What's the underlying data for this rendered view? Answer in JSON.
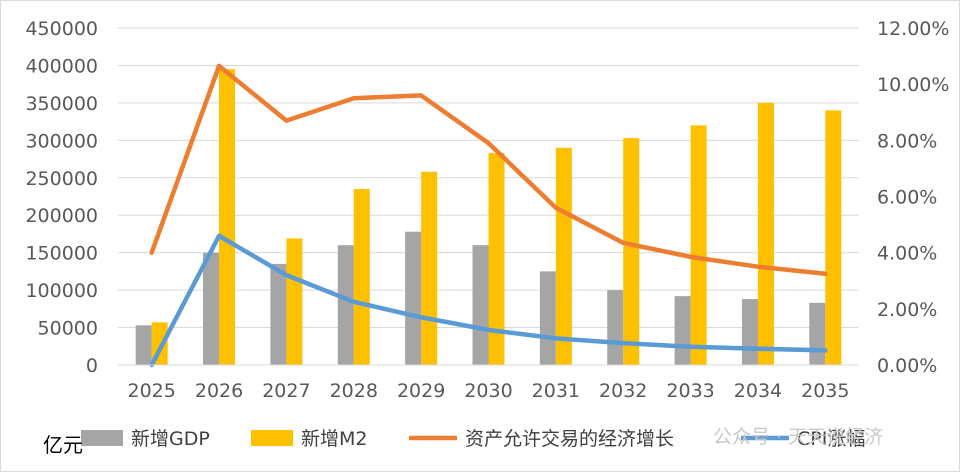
{
  "chart_data": {
    "type": "bar",
    "categories": [
      "2025",
      "2026",
      "2027",
      "2028",
      "2029",
      "2030",
      "2031",
      "2032",
      "2033",
      "2034",
      "2035"
    ],
    "y_left": {
      "ylim": [
        0,
        450000
      ],
      "ticks": [
        "0",
        "50000",
        "100000",
        "150000",
        "200000",
        "250000",
        "300000",
        "350000",
        "400000",
        "450000"
      ],
      "unit_label": "亿元"
    },
    "y_right": {
      "ylim": [
        0,
        12
      ],
      "ticks": [
        "0.00%",
        "2.00%",
        "4.00%",
        "6.00%",
        "8.00%",
        "10.00%",
        "12.00%"
      ]
    },
    "series": [
      {
        "name": "新增GDP",
        "type": "bar",
        "axis": "left",
        "color": "#a5a5a5",
        "values": [
          53000,
          150000,
          135000,
          160000,
          178000,
          160000,
          125000,
          100000,
          92000,
          88000,
          83000
        ]
      },
      {
        "name": "新增M2",
        "type": "bar",
        "axis": "left",
        "color": "#ffc000",
        "values": [
          57000,
          395000,
          169000,
          235000,
          258000,
          283000,
          290000,
          303000,
          320000,
          350000,
          340000
        ]
      },
      {
        "name": "资产允许交易的经济增长",
        "type": "line",
        "axis": "right",
        "color": "#ed7d31",
        "values": [
          4.0,
          10.65,
          8.7,
          9.5,
          9.6,
          7.9,
          5.6,
          4.35,
          3.85,
          3.5,
          3.25
        ]
      },
      {
        "name": "CPI涨幅",
        "type": "line",
        "axis": "right",
        "color": "#5b9bd5",
        "values": [
          0.0,
          4.6,
          3.2,
          2.25,
          1.7,
          1.25,
          0.95,
          0.78,
          0.65,
          0.58,
          0.52
        ]
      }
    ],
    "legend_position": "bottom",
    "grid": true
  },
  "watermark": {
    "text": "公众号 · 天天说经济"
  }
}
